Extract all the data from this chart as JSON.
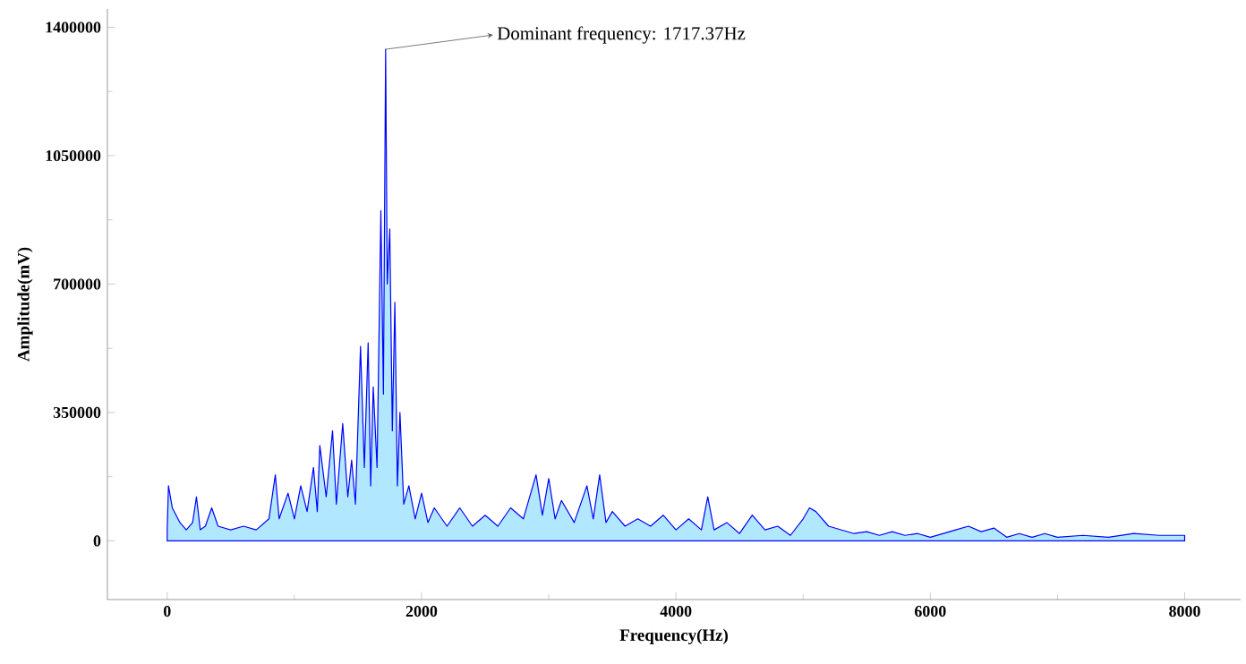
{
  "chart_data": {
    "type": "area",
    "xlabel": "Frequency(Hz)",
    "ylabel": "Amplitude(mV)",
    "annotations": [
      {
        "text": "Dominant frequency: 1717.37Hz",
        "x": 1717.37,
        "y": 1340000
      }
    ],
    "xlim": [
      -470,
      8440
    ],
    "ylim": [
      -160000,
      1450000
    ],
    "xticks": [
      0,
      2000,
      4000,
      6000,
      8000
    ],
    "yticks": [
      0,
      350000,
      700000,
      1050000,
      1400000
    ],
    "grid": false,
    "series": [
      {
        "color": "#0000ff",
        "x": [
          0,
          10,
          40,
          100,
          150,
          200,
          230,
          260,
          300,
          350,
          400,
          500,
          600,
          700,
          800,
          850,
          880,
          950,
          1000,
          1050,
          1100,
          1150,
          1180,
          1200,
          1250,
          1300,
          1330,
          1380,
          1420,
          1450,
          1480,
          1520,
          1550,
          1580,
          1600,
          1620,
          1650,
          1680,
          1700,
          1717.37,
          1730,
          1750,
          1770,
          1790,
          1810,
          1830,
          1860,
          1900,
          1950,
          2000,
          2050,
          2100,
          2200,
          2300,
          2400,
          2500,
          2600,
          2700,
          2800,
          2900,
          2950,
          3000,
          3050,
          3100,
          3200,
          3300,
          3350,
          3400,
          3450,
          3500,
          3600,
          3700,
          3800,
          3900,
          4000,
          4100,
          4200,
          4250,
          4300,
          4400,
          4500,
          4600,
          4700,
          4800,
          4900,
          5000,
          5050,
          5100,
          5200,
          5300,
          5400,
          5500,
          5600,
          5700,
          5800,
          5900,
          6000,
          6100,
          6200,
          6300,
          6400,
          6500,
          6600,
          6700,
          6800,
          6900,
          7000,
          7200,
          7400,
          7600,
          7800,
          8000
        ],
        "values": [
          30000,
          150000,
          90000,
          50000,
          30000,
          50000,
          120000,
          30000,
          40000,
          90000,
          40000,
          30000,
          40000,
          30000,
          60000,
          180000,
          60000,
          130000,
          60000,
          150000,
          80000,
          200000,
          80000,
          260000,
          120000,
          300000,
          100000,
          320000,
          120000,
          220000,
          100000,
          530000,
          200000,
          540000,
          150000,
          420000,
          200000,
          900000,
          400000,
          1340000,
          700000,
          850000,
          300000,
          650000,
          150000,
          350000,
          100000,
          150000,
          60000,
          130000,
          50000,
          90000,
          40000,
          90000,
          40000,
          70000,
          40000,
          90000,
          60000,
          180000,
          70000,
          170000,
          60000,
          110000,
          50000,
          150000,
          60000,
          180000,
          50000,
          80000,
          40000,
          60000,
          40000,
          70000,
          30000,
          60000,
          30000,
          120000,
          30000,
          50000,
          20000,
          70000,
          30000,
          40000,
          15000,
          60000,
          90000,
          80000,
          40000,
          30000,
          20000,
          25000,
          15000,
          25000,
          15000,
          20000,
          10000,
          20000,
          30000,
          40000,
          25000,
          35000,
          10000,
          20000,
          10000,
          20000,
          10000,
          15000,
          10000,
          20000,
          15000,
          15000
        ]
      }
    ]
  }
}
